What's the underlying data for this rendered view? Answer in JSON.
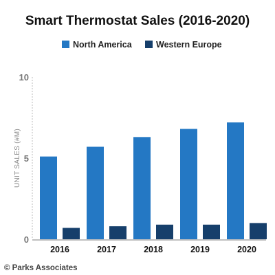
{
  "chart_data": {
    "type": "bar",
    "title": "Smart Thermostat Sales (2016-2020)",
    "categories": [
      "2016",
      "2017",
      "2018",
      "2019",
      "2020"
    ],
    "series": [
      {
        "name": "North America",
        "values": [
          5.1,
          5.7,
          6.3,
          6.8,
          7.2
        ]
      },
      {
        "name": "Western Europe",
        "values": [
          0.7,
          0.8,
          0.9,
          0.9,
          1.0
        ]
      }
    ],
    "ylabel": "UNIT SALES (#M)",
    "xlabel": "",
    "ylim": [
      0,
      10
    ],
    "yticks": [
      "0",
      "5",
      "10"
    ],
    "legend": "top-center",
    "grid": false,
    "colors": {
      "North America": "#2478c4",
      "Western Europe": "#163f6b"
    }
  },
  "source": "© Parks Associates"
}
